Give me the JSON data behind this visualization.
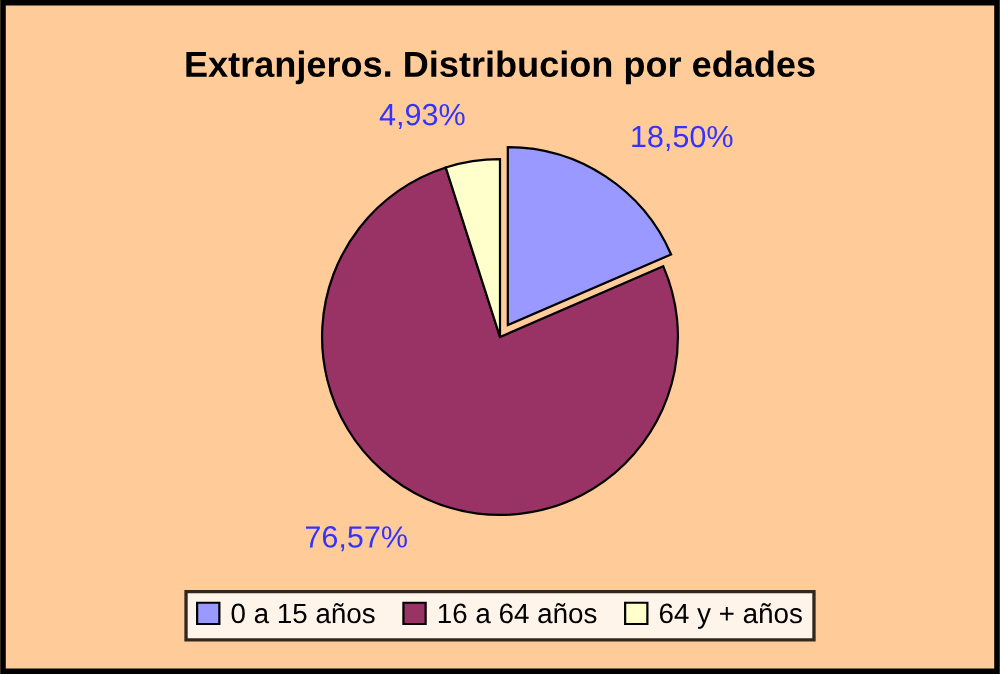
{
  "chart_data": {
    "type": "pie",
    "title": "Extranjeros. Distribucion por edades",
    "categories": [
      "0 a 15 años",
      "16 a 64 años",
      "64 y + años"
    ],
    "values": [
      18.5,
      76.57,
      4.93
    ],
    "value_labels": [
      "18,50%",
      "76,57%",
      "4,93%"
    ],
    "colors": [
      "#9999ff",
      "#993366",
      "#ffffcc"
    ],
    "legend": "bottom"
  }
}
